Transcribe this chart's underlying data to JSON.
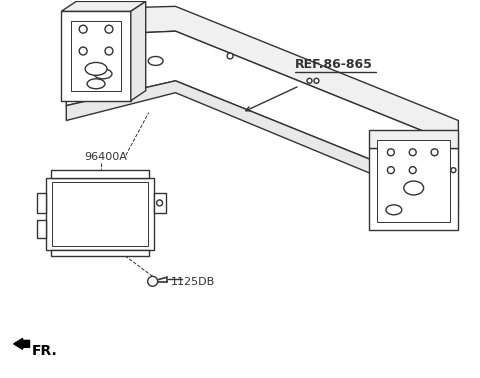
{
  "bg_color": "#ffffff",
  "line_color": "#333333",
  "labels": {
    "ref": "REF.86-865",
    "part_a": "96400A",
    "part_b": "1125DB",
    "direction": "FR."
  },
  "figsize": [
    4.8,
    3.78
  ],
  "dpi": 100
}
